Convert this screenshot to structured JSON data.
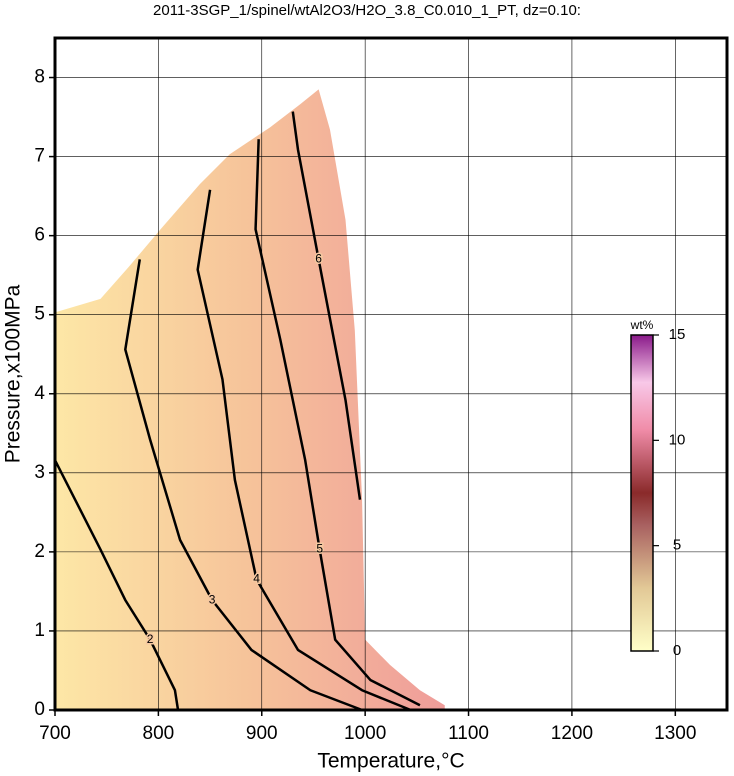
{
  "chart_data": {
    "type": "contour",
    "title": "2011-3SGP_1/spinel/wtAl2O3/H2O_3.8_C0.010_1_PT, dz=0.10:",
    "xlabel": "Temperature,°C",
    "ylabel": "Pressure,x100MPa",
    "xlim": [
      700,
      1350
    ],
    "ylim": [
      0,
      8.5
    ],
    "xticks": [
      700,
      800,
      900,
      1000,
      1100,
      1200,
      1300
    ],
    "yticks": [
      0,
      1,
      2,
      3,
      4,
      5,
      6,
      7,
      8
    ],
    "grid": true,
    "boundary": {
      "x": [
        700,
        700,
        744,
        773,
        802,
        840,
        869,
        908,
        937,
        955,
        966,
        981,
        990,
        997,
        1000,
        1024,
        1053,
        1077,
        1077
      ],
      "y": [
        0,
        5.03,
        5.2,
        5.63,
        6.08,
        6.65,
        7.03,
        7.37,
        7.66,
        7.85,
        7.34,
        6.2,
        4.8,
        2.66,
        0.89,
        0.57,
        0.25,
        0.06,
        0
      ]
    },
    "contours": [
      {
        "level": 2,
        "x": [
          700,
          744,
          768,
          792,
          816,
          819
        ],
        "y": [
          3.16,
          2.03,
          1.39,
          0.89,
          0.25,
          0
        ]
      },
      {
        "level": 3,
        "x": [
          782,
          768,
          792,
          821,
          852,
          890,
          947,
          997
        ],
        "y": [
          5.7,
          4.56,
          3.42,
          2.15,
          1.39,
          0.76,
          0.25,
          0
        ]
      },
      {
        "level": 4,
        "x": [
          850,
          838,
          862,
          874,
          895,
          935,
          997,
          1044
        ],
        "y": [
          6.58,
          5.57,
          4.18,
          2.91,
          1.65,
          0.76,
          0.25,
          0
        ]
      },
      {
        "level": 5,
        "x": [
          897,
          894,
          918,
          942,
          956,
          971,
          1005,
          1053
        ],
        "y": [
          7.22,
          6.08,
          4.68,
          3.16,
          2.03,
          0.89,
          0.38,
          0.06
        ]
      },
      {
        "level": 6,
        "x": [
          930,
          935,
          955,
          981,
          995
        ],
        "y": [
          7.57,
          7.09,
          5.7,
          3.92,
          2.66
        ]
      }
    ],
    "colorbar": {
      "label": "wt%",
      "lim": [
        0,
        15
      ],
      "ticks": [
        0,
        5,
        10,
        15
      ]
    }
  }
}
